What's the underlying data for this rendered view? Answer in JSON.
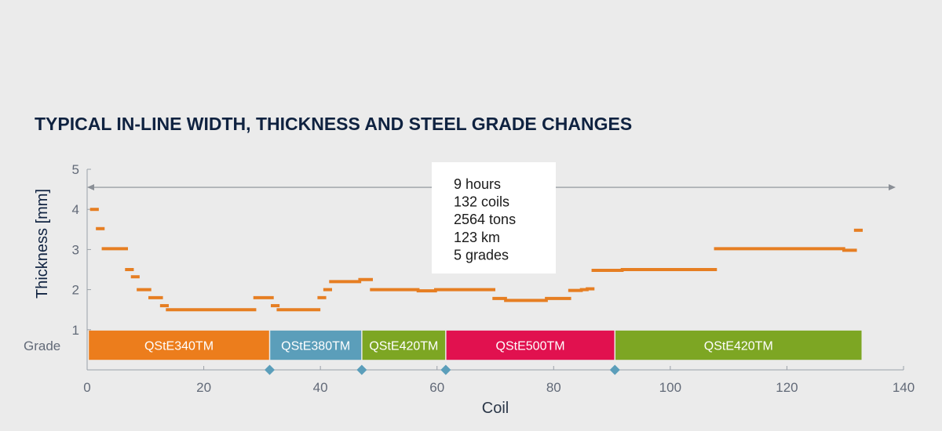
{
  "title": "TYPICAL IN-LINE WIDTH, THICKNESS AND STEEL GRADE CHANGES",
  "chart_data": {
    "type": "line",
    "xlabel": "Coil",
    "ylabel": "Thickness [mm]",
    "xlim": [
      0,
      140
    ],
    "ylim": [
      0,
      5
    ],
    "x_ticks": [
      0,
      20,
      40,
      60,
      80,
      100,
      120,
      140
    ],
    "y_ticks": [
      1,
      2,
      3,
      4,
      5
    ],
    "grade_row_label": "Grade",
    "series": [
      {
        "style": "step-segments",
        "color": "#e67e22",
        "segments": [
          {
            "x0": 0.5,
            "x1": 2,
            "y": 4.0
          },
          {
            "x0": 1.5,
            "x1": 3,
            "y": 3.52
          },
          {
            "x0": 2.5,
            "x1": 7,
            "y": 3.02
          },
          {
            "x0": 6.5,
            "x1": 8,
            "y": 2.5
          },
          {
            "x0": 7.5,
            "x1": 9,
            "y": 2.32
          },
          {
            "x0": 8.5,
            "x1": 11,
            "y": 2.0
          },
          {
            "x0": 10.5,
            "x1": 13,
            "y": 1.8
          },
          {
            "x0": 12.5,
            "x1": 14,
            "y": 1.6
          },
          {
            "x0": 13.5,
            "x1": 29,
            "y": 1.5
          },
          {
            "x0": 28.5,
            "x1": 32,
            "y": 1.8
          },
          {
            "x0": 31.5,
            "x1": 33,
            "y": 1.6
          },
          {
            "x0": 32.5,
            "x1": 40,
            "y": 1.5
          },
          {
            "x0": 39.5,
            "x1": 41,
            "y": 1.8
          },
          {
            "x0": 40.5,
            "x1": 42,
            "y": 2.0
          },
          {
            "x0": 41.5,
            "x1": 47,
            "y": 2.2
          },
          {
            "x0": 46.5,
            "x1": 49,
            "y": 2.25
          },
          {
            "x0": 48.5,
            "x1": 57,
            "y": 2.0
          },
          {
            "x0": 56.5,
            "x1": 60,
            "y": 1.97
          },
          {
            "x0": 59.5,
            "x1": 70,
            "y": 2.0
          },
          {
            "x0": 69.5,
            "x1": 72,
            "y": 1.78
          },
          {
            "x0": 71.5,
            "x1": 79,
            "y": 1.73
          },
          {
            "x0": 78.5,
            "x1": 83,
            "y": 1.78
          },
          {
            "x0": 82.5,
            "x1": 85,
            "y": 1.98
          },
          {
            "x0": 84.5,
            "x1": 86,
            "y": 2.0
          },
          {
            "x0": 85.5,
            "x1": 87,
            "y": 2.02
          },
          {
            "x0": 86.5,
            "x1": 92,
            "y": 2.48
          },
          {
            "x0": 91.5,
            "x1": 108,
            "y": 2.5
          },
          {
            "x0": 107.5,
            "x1": 130,
            "y": 3.02
          },
          {
            "x0": 129.5,
            "x1": 132,
            "y": 2.98
          },
          {
            "x0": 131.5,
            "x1": 133,
            "y": 3.48
          }
        ]
      }
    ],
    "grades": [
      {
        "label": "QStE340TM",
        "x0": 0.3,
        "x1": 31.2,
        "color": "#ec7d1c"
      },
      {
        "label": "QStE380TM",
        "x0": 31.4,
        "x1": 47,
        "color": "#5b9eba"
      },
      {
        "label": "QStE420TM",
        "x0": 47.2,
        "x1": 61.4,
        "color": "#7da623"
      },
      {
        "label": "QStE500TM",
        "x0": 61.6,
        "x1": 90.4,
        "color": "#e1114f"
      },
      {
        "label": "QStE420TM",
        "x0": 90.6,
        "x1": 132.8,
        "color": "#7da623"
      }
    ],
    "change_markers": [
      31.3,
      47.1,
      61.5,
      90.5
    ],
    "marker_color": "#5b9eba",
    "span_arrow": {
      "x0": 0,
      "x1": 140,
      "y": 4.55
    },
    "info_box": [
      "9 hours",
      "132 coils",
      "2564 tons",
      "123 km",
      "5 grades"
    ]
  }
}
